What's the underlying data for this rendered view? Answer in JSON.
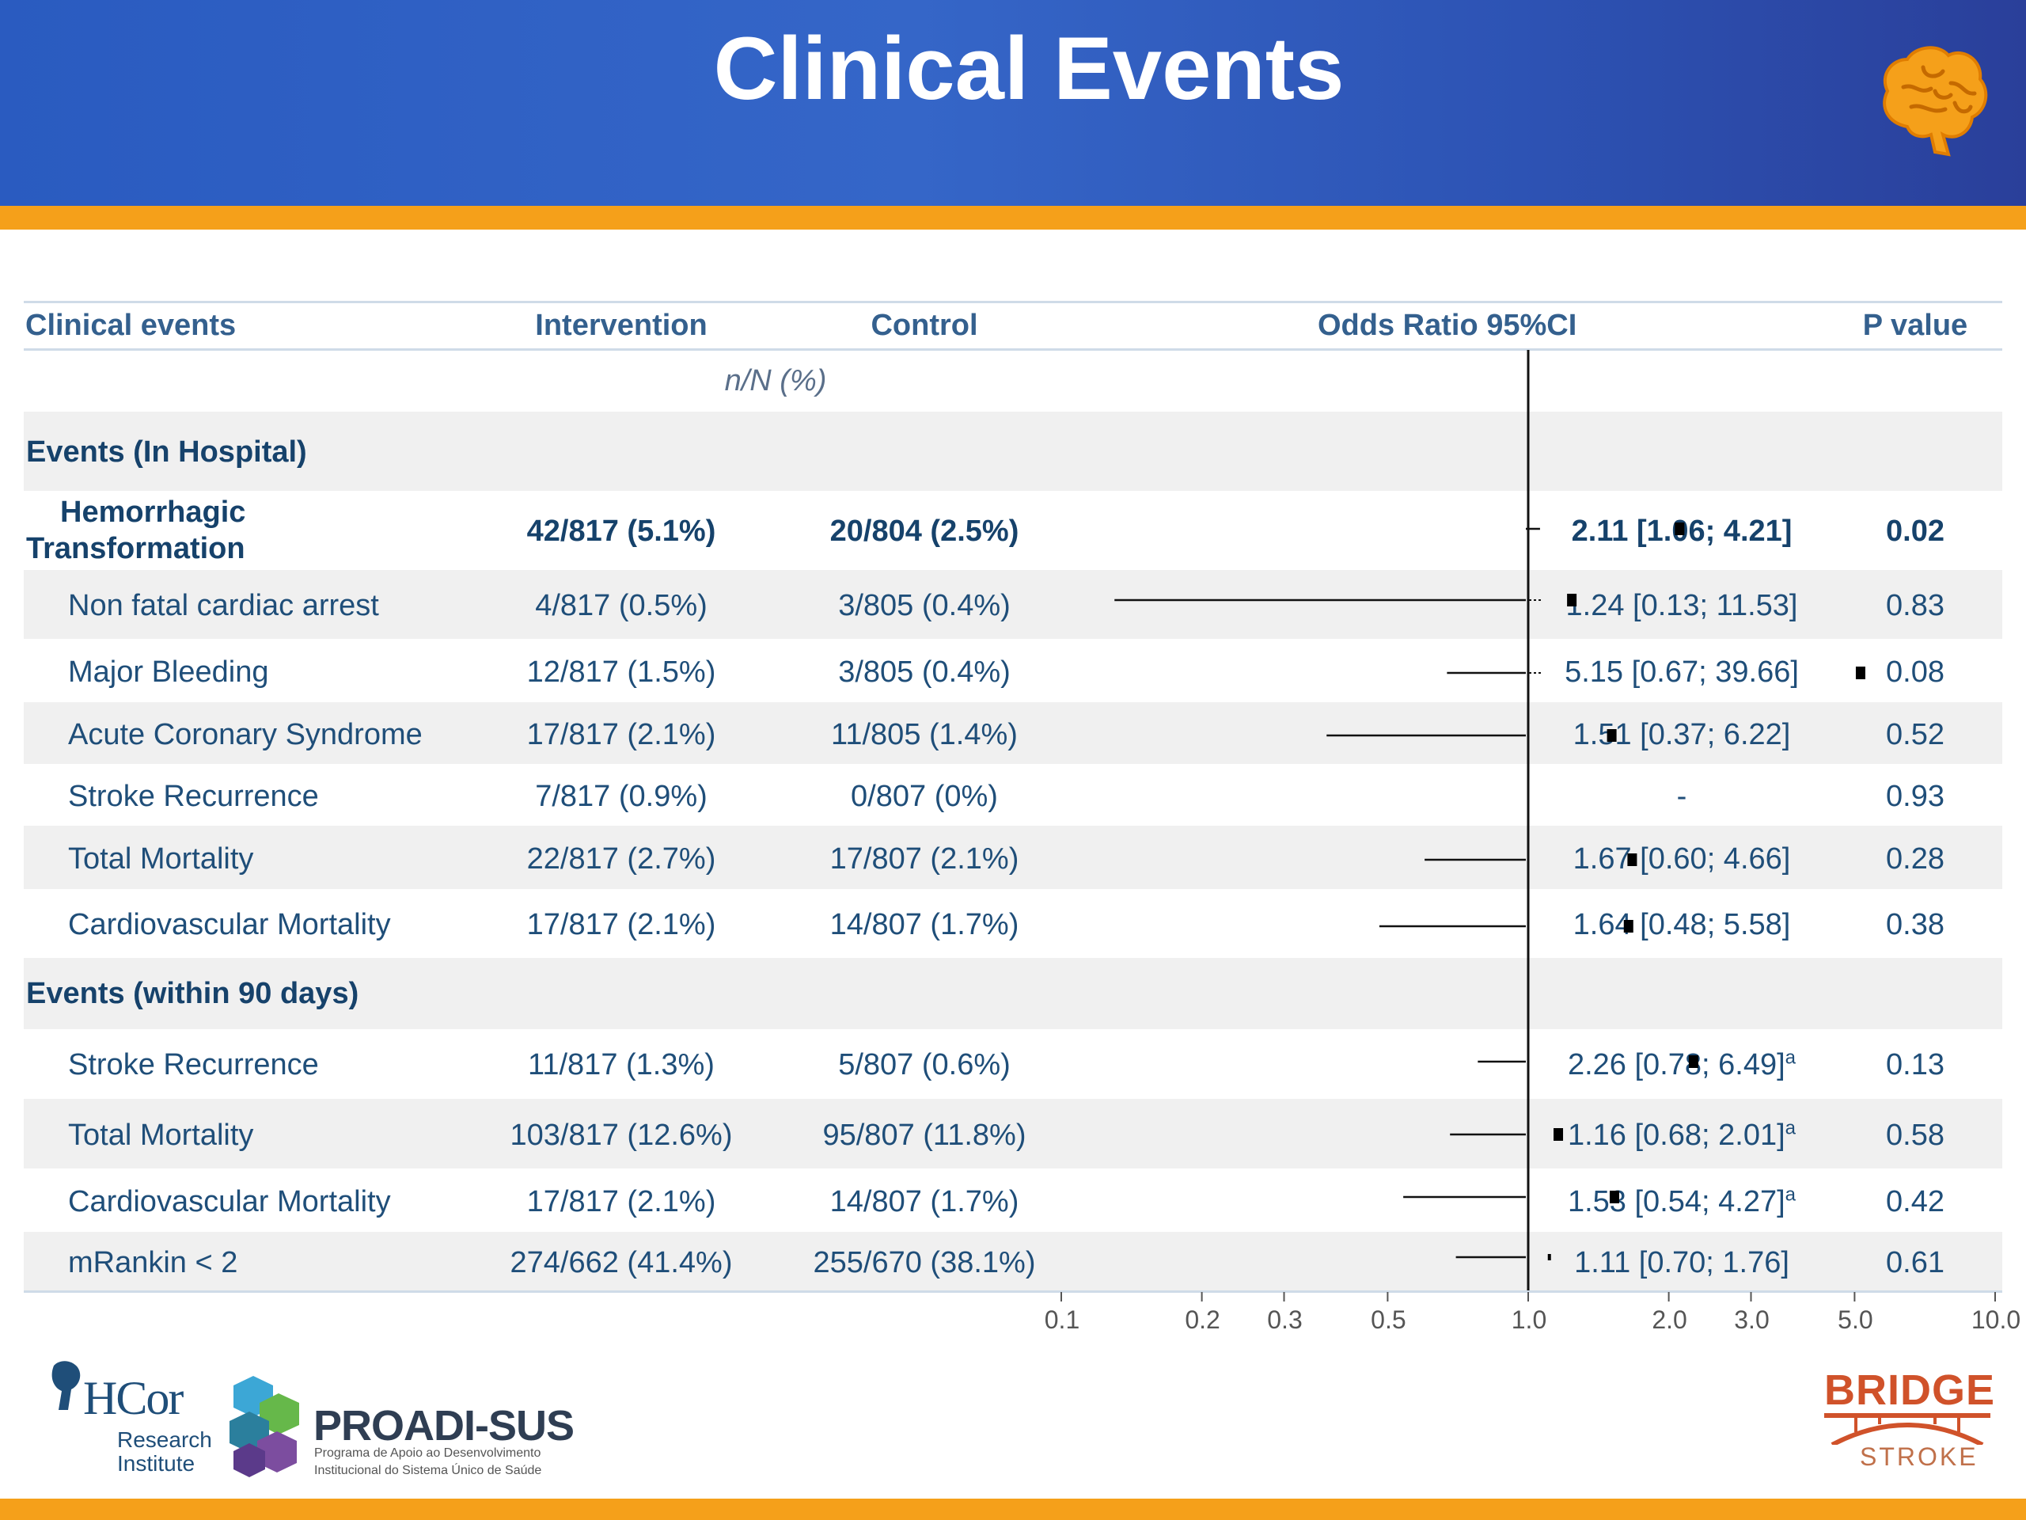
{
  "slide": {
    "title": "Clinical Events"
  },
  "table": {
    "headers": {
      "events": "Clinical events",
      "intervention": "Intervention",
      "control": "Control",
      "odds_ratio": "Odds Ratio 95%CI",
      "p_value": "P value"
    },
    "subheader": "n/N (%)",
    "sections": [
      {
        "label": "Events (In Hospital)"
      },
      {
        "label": "Events (within 90 days)"
      }
    ],
    "rows": [
      {
        "event_line1": "Hemorrhagic",
        "event_line2": "Transformation",
        "intervention": "42/817 (5.1%)",
        "control": "20/804 (2.5%)",
        "or_text": "2.11 [1.06; 4.21]",
        "superscript": "",
        "p": "0.02",
        "bold": true
      },
      {
        "event": "Non fatal cardiac arrest",
        "intervention": "4/817 (0.5%)",
        "control": "3/805 (0.4%)",
        "or_text": "1.24 [0.13; 11.53]",
        "superscript": "",
        "p": "0.83"
      },
      {
        "event": "Major Bleeding",
        "intervention": "12/817 (1.5%)",
        "control": "3/805 (0.4%)",
        "or_text": "5.15 [0.67; 39.66]",
        "superscript": "",
        "p": "0.08"
      },
      {
        "event": "Acute Coronary Syndrome",
        "intervention": "17/817 (2.1%)",
        "control": "11/805 (1.4%)",
        "or_text": "1.51 [0.37; 6.22]",
        "superscript": "",
        "p": "0.52"
      },
      {
        "event": "Stroke Recurrence",
        "intervention": "7/817 (0.9%)",
        "control": "0/807 (0%)",
        "or_text": "-",
        "superscript": "",
        "p": "0.93"
      },
      {
        "event": "Total Mortality",
        "intervention": "22/817 (2.7%)",
        "control": "17/807 (2.1%)",
        "or_text": "1.67 [0.60; 4.66]",
        "superscript": "",
        "p": "0.28"
      },
      {
        "event": "Cardiovascular Mortality",
        "intervention": "17/817 (2.1%)",
        "control": "14/807 (1.7%)",
        "or_text": "1.64 [0.48; 5.58]",
        "superscript": "",
        "p": "0.38"
      },
      {
        "event": "Stroke Recurrence",
        "intervention": "11/817 (1.3%)",
        "control": "5/807 (0.6%)",
        "or_text": "2.26 [0.78; 6.49]",
        "superscript": "a",
        "p": "0.13"
      },
      {
        "event": "Total Mortality",
        "intervention": "103/817 (12.6%)",
        "control": "95/807 (11.8%)",
        "or_text": "1.16 [0.68; 2.01]",
        "superscript": "a",
        "p": "0.58"
      },
      {
        "event": "Cardiovascular Mortality",
        "intervention": "17/817 (2.1%)",
        "control": "14/807 (1.7%)",
        "or_text": "1.53 [0.54; 4.27]",
        "superscript": "a",
        "p": "0.42"
      },
      {
        "event": "mRankin < 2",
        "intervention": "274/662 (41.4%)",
        "control": "255/670 (38.1%)",
        "or_text": "1.11 [0.70; 1.76]",
        "superscript": "",
        "p": "0.61"
      }
    ]
  },
  "chart_data": {
    "type": "forest",
    "scale": "log",
    "reference_line": 1.0,
    "xlim": [
      0.1,
      10.0
    ],
    "ticks": [
      0.1,
      0.2,
      0.3,
      0.5,
      1.0,
      2.0,
      3.0,
      5.0,
      10.0
    ],
    "tick_labels": [
      "0.1",
      "0.2",
      "0.3",
      "0.5",
      "1.0",
      "2.0",
      "3.0",
      "5.0",
      "10.0"
    ],
    "series": [
      {
        "or": 2.11,
        "lower": 1.06,
        "upper": 4.21,
        "arrow_upper": false
      },
      {
        "or": 1.24,
        "lower": 0.13,
        "upper": 11.53,
        "arrow_upper": true
      },
      {
        "or": 5.15,
        "lower": 0.67,
        "upper": 39.66,
        "arrow_upper": true
      },
      {
        "or": 1.51,
        "lower": 0.37,
        "upper": 6.22,
        "arrow_upper": false
      },
      null,
      {
        "or": 1.67,
        "lower": 0.6,
        "upper": 4.66,
        "arrow_upper": false
      },
      {
        "or": 1.64,
        "lower": 0.48,
        "upper": 5.58,
        "arrow_upper": false
      },
      {
        "or": 2.26,
        "lower": 0.78,
        "upper": 6.49,
        "arrow_upper": false
      },
      {
        "or": 1.16,
        "lower": 0.68,
        "upper": 2.01,
        "arrow_upper": false
      },
      {
        "or": 1.53,
        "lower": 0.54,
        "upper": 4.27,
        "arrow_upper": false
      },
      {
        "or": 1.11,
        "lower": 0.7,
        "upper": 1.76,
        "arrow_upper": false
      }
    ]
  },
  "logos": {
    "hcor_mark": "HCor",
    "hcor_line1": "Research",
    "hcor_line2": "Institute",
    "proadi_name": "PROADI-SUS",
    "proadi_line1": "Programa de Apoio ao Desenvolvimento",
    "proadi_line2": "Institucional do Sistema Único de Saúde",
    "bridge_name": "BRIDGE",
    "bridge_sub": "STROKE"
  },
  "colors": {
    "header_blue": "#2d5cc0",
    "accent_orange": "#f5a01a",
    "text_navy": "#1f4e79"
  }
}
